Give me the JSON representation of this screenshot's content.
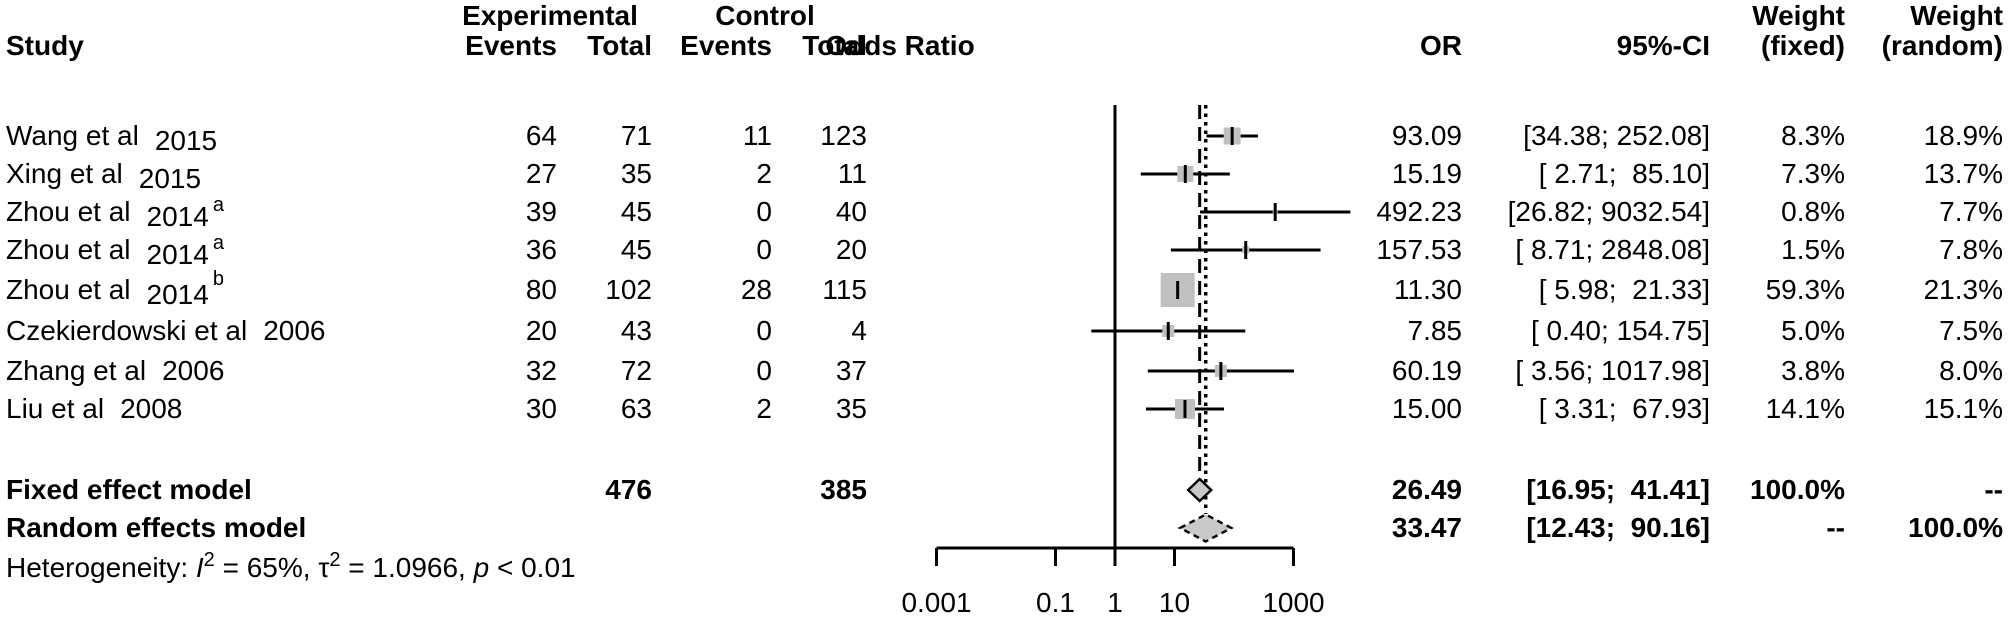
{
  "headers": {
    "study": "Study",
    "experimental": "Experimental",
    "control": "Control",
    "events": "Events",
    "total": "Total",
    "odds_ratio": "Odds Ratio",
    "or": "OR",
    "ci": "95%-CI",
    "weight": "Weight",
    "fixed": "(fixed)",
    "random": "(random)"
  },
  "chart_data": {
    "type": "forest",
    "scale": "log10",
    "effect_measure": "Odds Ratio",
    "null_value": 1,
    "axis_tick_values": [
      0.001,
      0.1,
      1,
      10,
      1000
    ],
    "axis_tick_labels": [
      "0.001",
      "0.1",
      "1",
      "10",
      "1000"
    ],
    "studies": [
      {
        "name": "Wang et al",
        "year": "2015",
        "sup": "",
        "year_drop": true,
        "events_exp": "64",
        "total_exp": "71",
        "events_ctrl": "11",
        "total_ctrl": "123",
        "or": 93.09,
        "ci_low": 34.38,
        "ci_high": 252.08,
        "or_label": "93.09",
        "ci_label": "[34.38; 252.08]",
        "weight_fixed": "8.3%",
        "weight_random": "18.9%",
        "square": 17
      },
      {
        "name": "Xing et al",
        "year": "2015",
        "sup": "",
        "year_drop": true,
        "events_exp": "27",
        "total_exp": "35",
        "events_ctrl": "2",
        "total_ctrl": "11",
        "or": 15.19,
        "ci_low": 2.71,
        "ci_high": 85.1,
        "or_label": "15.19",
        "ci_label": "[ 2.71;  85.10]",
        "weight_fixed": "7.3%",
        "weight_random": "13.7%",
        "square": 16
      },
      {
        "name": "Zhou et al",
        "year": "2014",
        "sup": "a",
        "year_drop": true,
        "events_exp": "39",
        "total_exp": "45",
        "events_ctrl": "0",
        "total_ctrl": "40",
        "or": 492.23,
        "ci_low": 26.82,
        "ci_high": 9032.54,
        "or_label": "492.23",
        "ci_label": "[26.82; 9032.54]",
        "weight_fixed": "0.8%",
        "weight_random": "7.7%",
        "square": 5
      },
      {
        "name": "Zhou et al",
        "year": "2014",
        "sup": "a",
        "year_drop": true,
        "events_exp": "36",
        "total_exp": "45",
        "events_ctrl": "0",
        "total_ctrl": "20",
        "or": 157.53,
        "ci_low": 8.71,
        "ci_high": 2848.08,
        "or_label": "157.53",
        "ci_label": "[ 8.71; 2848.08]",
        "weight_fixed": "1.5%",
        "weight_random": "7.8%",
        "square": 7
      },
      {
        "name": "Zhou et al",
        "year": "2014",
        "sup": "b",
        "year_drop": true,
        "events_exp": "80",
        "total_exp": "102",
        "events_ctrl": "28",
        "total_ctrl": "115",
        "or": 11.3,
        "ci_low": 5.98,
        "ci_high": 21.33,
        "or_label": "11.30",
        "ci_label": "[ 5.98;  21.33]",
        "weight_fixed": "59.3%",
        "weight_random": "21.3%",
        "square": 34
      },
      {
        "name": "Czekierdowski et al",
        "year": "2006",
        "sup": "",
        "year_drop": false,
        "events_exp": "20",
        "total_exp": "43",
        "events_ctrl": "0",
        "total_ctrl": "4",
        "or": 7.85,
        "ci_low": 0.4,
        "ci_high": 154.75,
        "or_label": "7.85",
        "ci_label": "[ 0.40; 154.75]",
        "weight_fixed": "5.0%",
        "weight_random": "7.5%",
        "square": 12
      },
      {
        "name": "Zhang et al",
        "year": "2006",
        "sup": "",
        "year_drop": false,
        "events_exp": "32",
        "total_exp": "72",
        "events_ctrl": "0",
        "total_ctrl": "37",
        "or": 60.19,
        "ci_low": 3.56,
        "ci_high": 1017.98,
        "or_label": "60.19",
        "ci_label": "[ 3.56; 1017.98]",
        "weight_fixed": "3.8%",
        "weight_random": "8.0%",
        "square": 12
      },
      {
        "name": "Liu et al",
        "year": "2008",
        "sup": "",
        "year_drop": false,
        "events_exp": "30",
        "total_exp": "63",
        "events_ctrl": "2",
        "total_ctrl": "35",
        "or": 15.0,
        "ci_low": 3.31,
        "ci_high": 67.93,
        "or_label": "15.00",
        "ci_label": "[ 3.31;  67.93]",
        "weight_fixed": "14.1%",
        "weight_random": "15.1%",
        "square": 20
      }
    ],
    "fixed": {
      "label": "Fixed effect model",
      "total_exp": "476",
      "total_ctrl": "385",
      "or": 26.49,
      "ci_low": 16.95,
      "ci_high": 41.41,
      "or_label": "26.49",
      "ci_label": "[16.95;  41.41]",
      "weight_fixed": "100.0%",
      "weight_random": "--"
    },
    "random": {
      "label": "Random effects model",
      "or": 33.47,
      "ci_low": 12.43,
      "ci_high": 90.16,
      "or_label": "33.47",
      "ci_label": "[12.43;  90.16]",
      "weight_fixed": "--",
      "weight_random": "100.0%"
    },
    "heterogeneity_segments": [
      {
        "t": "Heterogeneity: "
      },
      {
        "t": "I",
        "italic": true
      },
      {
        "t": "2",
        "sup": true
      },
      {
        "t": " = 65%, "
      },
      {
        "t": "τ"
      },
      {
        "t": "2",
        "sup": true
      },
      {
        "t": " = 1.0966, "
      },
      {
        "t": "p",
        "italic": true
      },
      {
        "t": " < 0.01"
      }
    ],
    "colors": {
      "square": "#c0c0c0",
      "diamond_fill": "#c9c9c9",
      "line": "#000000"
    }
  }
}
